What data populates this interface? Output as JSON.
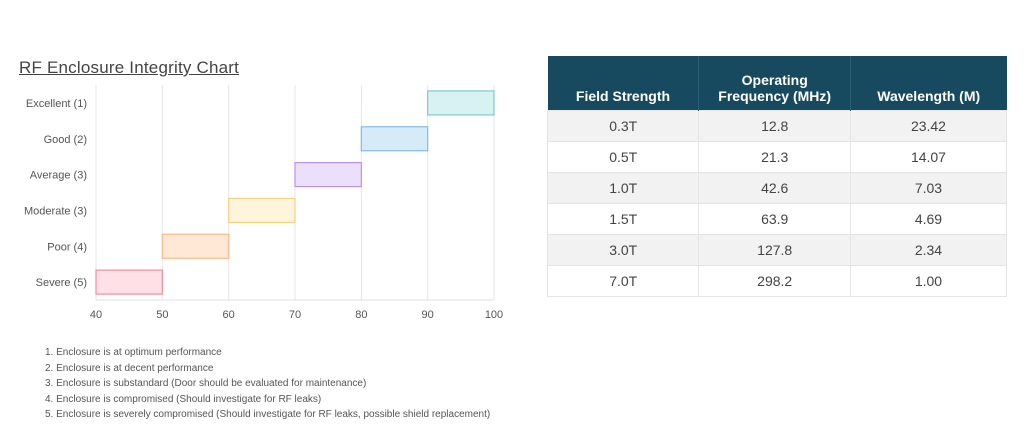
{
  "chart_data": {
    "type": "bar",
    "orientation": "horizontal-floating",
    "title": "RF Enclosure Integrity Chart",
    "categories": [
      "Excellent (1)",
      "Good (2)",
      "Average (3)",
      "Moderate (3)",
      "Poor (4)",
      "Severe (5)"
    ],
    "ranges": [
      [
        90,
        100
      ],
      [
        80,
        90
      ],
      [
        70,
        80
      ],
      [
        60,
        70
      ],
      [
        50,
        60
      ],
      [
        40,
        50
      ]
    ],
    "colors": {
      "fill": [
        "#d8f1f1",
        "#d6ebf8",
        "#ebdffb",
        "#fff5dd",
        "#ffe9d6",
        "#ffe0e6"
      ],
      "stroke": [
        "#7ccccc",
        "#7fbde6",
        "#b993ef",
        "#f3d27f",
        "#f5bb86",
        "#ef8ea0"
      ]
    },
    "xlim": [
      40,
      100
    ],
    "xticks": [
      40,
      50,
      60,
      70,
      80,
      90,
      100
    ],
    "grid": true
  },
  "notes": [
    "1. Enclosure is at optimum performance",
    "2. Enclosure is at decent performance",
    "3. Enclosure is substandard (Door should be evaluated for maintenance)",
    "4. Enclosure is compromised (Should investigate for RF leaks)",
    "5. Enclosure is severely compromised (Should investigate for RF leaks, possible shield replacement)"
  ],
  "table": {
    "headers": [
      "Field Strength",
      "Operating Frequency (MHz)",
      "Wavelength (M)"
    ],
    "rows": [
      [
        "0.3T",
        "12.8",
        "23.42"
      ],
      [
        "0.5T",
        "21.3",
        "14.07"
      ],
      [
        "1.0T",
        "42.6",
        "7.03"
      ],
      [
        "1.5T",
        "63.9",
        "4.69"
      ],
      [
        "3.0T",
        "127.8",
        "2.34"
      ],
      [
        "7.0T",
        "298.2",
        "1.00"
      ]
    ],
    "header_color": "#174a5e"
  }
}
